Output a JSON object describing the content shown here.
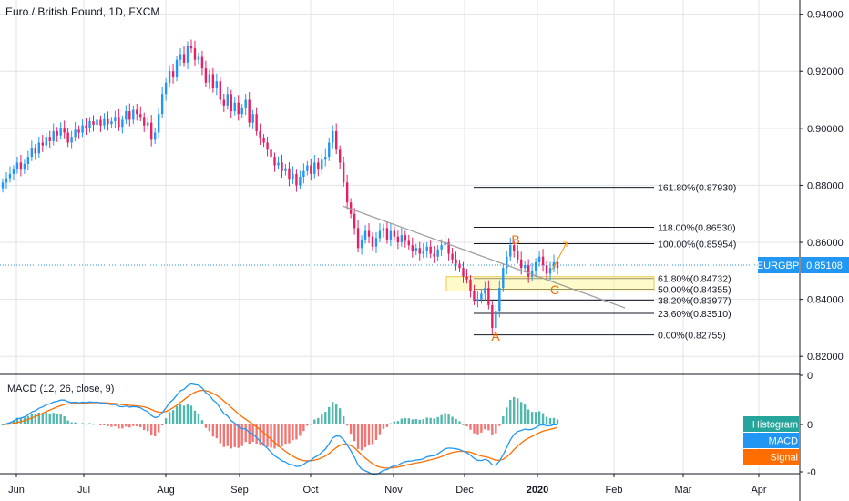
{
  "title": "Euro / British Pound, 1D, FXCM",
  "macd_title": "MACD (12, 26, close, 9)",
  "colors": {
    "up": "#2196f3",
    "down": "#e91e63",
    "grid": "#e0e3eb",
    "axis": "#131722",
    "macd": "#2196f3",
    "signal": "#ff6d00",
    "hist_pos": "#26a69a",
    "hist_neg": "#ef5350",
    "last_price": "#2196f3"
  },
  "chart_data": {
    "type": "candlestick",
    "x_labels": [
      "Jun",
      "Jul",
      "Aug",
      "Sep",
      "Oct",
      "Nov",
      "Dec",
      "2020",
      "Feb",
      "Mar",
      "Apr"
    ],
    "y_ticks": [
      "0.94000",
      "0.92000",
      "0.90000",
      "0.88000",
      "0.86000",
      "0.84000",
      "0.82000"
    ],
    "ylim": [
      0.814,
      0.945
    ],
    "closes": [
      0.881,
      0.8825,
      0.884,
      0.8856,
      0.888,
      0.8855,
      0.8875,
      0.89,
      0.893,
      0.8912,
      0.895,
      0.894,
      0.897,
      0.8955,
      0.899,
      0.8975,
      0.9,
      0.8985,
      0.895,
      0.897,
      0.8995,
      0.8985,
      0.901,
      0.9,
      0.9025,
      0.9012,
      0.903,
      0.901,
      0.9032,
      0.9015,
      0.9025,
      0.904,
      0.9005,
      0.903,
      0.906,
      0.903,
      0.9065,
      0.905,
      0.904,
      0.901,
      0.902,
      0.896,
      0.8985,
      0.905,
      0.912,
      0.916,
      0.92,
      0.918,
      0.924,
      0.926,
      0.923,
      0.929,
      0.928,
      0.924,
      0.925,
      0.921,
      0.916,
      0.919,
      0.914,
      0.9165,
      0.91,
      0.908,
      0.912,
      0.906,
      0.909,
      0.905,
      0.907,
      0.91,
      0.902,
      0.905,
      0.899,
      0.8965,
      0.895,
      0.8925,
      0.89,
      0.887,
      0.888,
      0.885,
      0.886,
      0.882,
      0.884,
      0.88,
      0.883,
      0.885,
      0.887,
      0.884,
      0.888,
      0.8855,
      0.889,
      0.89,
      0.895,
      0.899,
      0.8925,
      0.888,
      0.881,
      0.874,
      0.87,
      0.865,
      0.858,
      0.861,
      0.864,
      0.862,
      0.8585,
      0.8615,
      0.864,
      0.865,
      0.861,
      0.864,
      0.862,
      0.86,
      0.8625,
      0.8605,
      0.859,
      0.857,
      0.858,
      0.856,
      0.857,
      0.8585,
      0.856,
      0.855,
      0.8575,
      0.859,
      0.86,
      0.856,
      0.854,
      0.8525,
      0.851,
      0.848,
      0.847,
      0.843,
      0.8395,
      0.84,
      0.842,
      0.844,
      0.838,
      0.83,
      0.836,
      0.844,
      0.851,
      0.855,
      0.859,
      0.857,
      0.854,
      0.851,
      0.852,
      0.848,
      0.85,
      0.853,
      0.855,
      0.852,
      0.849,
      0.851,
      0.853,
      0.851
    ],
    "fib_levels": [
      {
        "label": "161.80%(0.87930)",
        "value": 0.8793
      },
      {
        "label": "118.00%(0.86530)",
        "value": 0.8653
      },
      {
        "label": "100.00%(0.85954)",
        "value": 0.85954
      },
      {
        "label": "61.80%(0.84732)",
        "value": 0.84732
      },
      {
        "label": "50.00%(0.84355)",
        "value": 0.84355
      },
      {
        "label": "38.20%(0.83977)",
        "value": 0.83977
      },
      {
        "label": "23.60%(0.83510)",
        "value": 0.8351
      },
      {
        "label": "0.00%(0.82755)",
        "value": 0.82755
      }
    ],
    "waves": [
      "A",
      "B",
      "C"
    ],
    "last_price": {
      "symbol": "EURGBP",
      "value": "0.85108"
    },
    "macd_y_ticks": [
      "0",
      "0",
      "-0"
    ],
    "macd_legend": [
      "Histogram",
      "MACD",
      "Signal"
    ]
  }
}
